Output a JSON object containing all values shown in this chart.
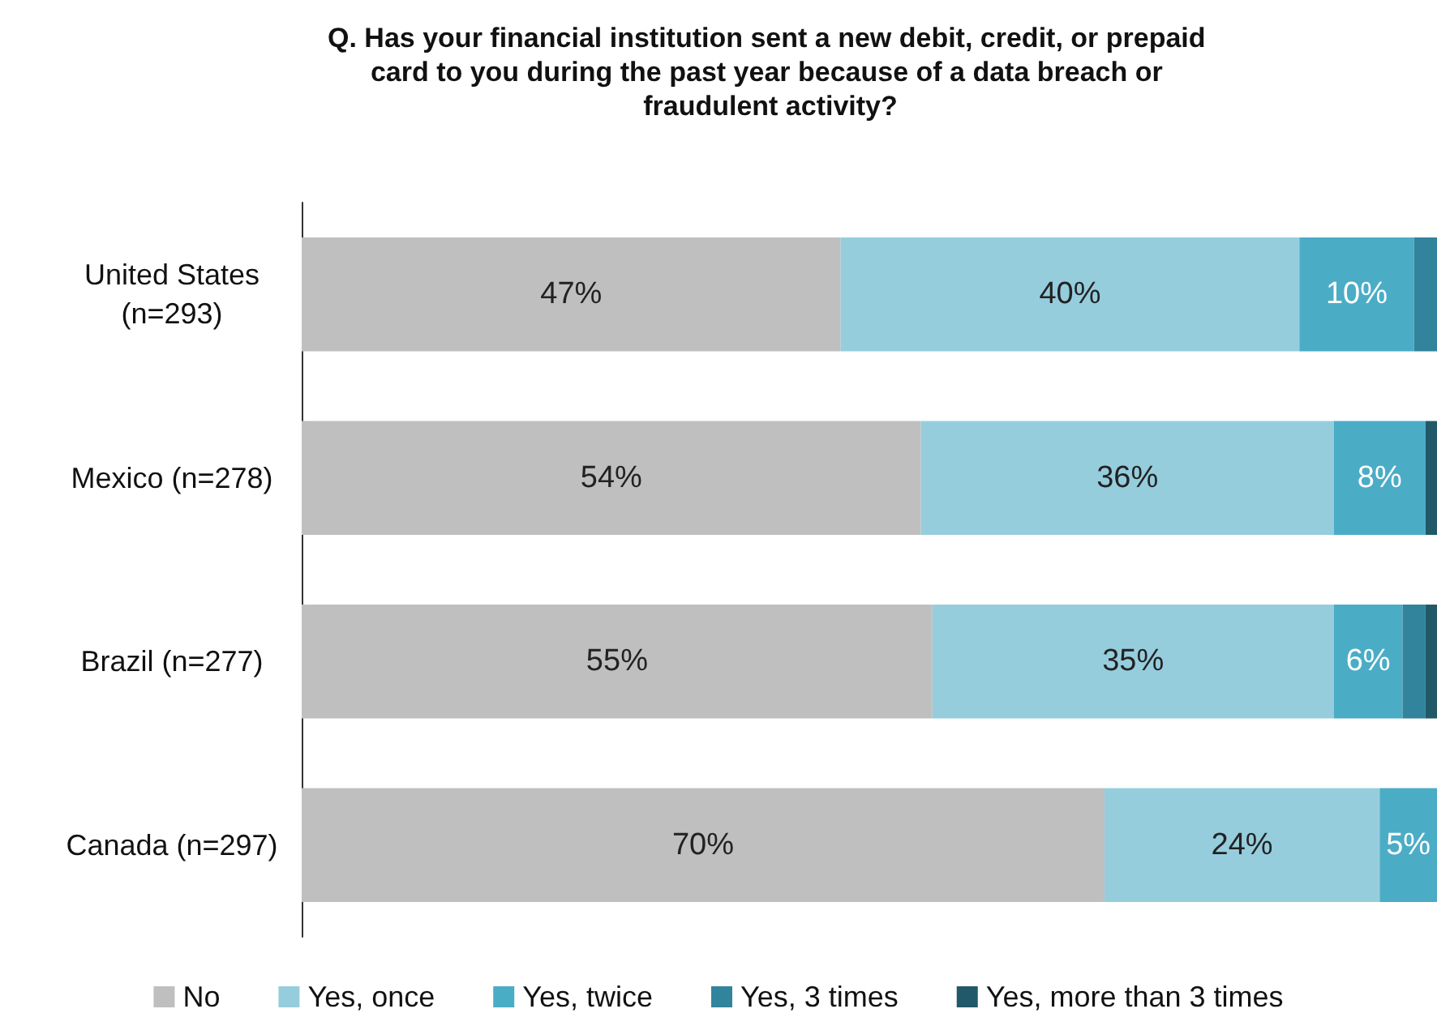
{
  "chart_data": {
    "type": "bar",
    "orientation": "horizontal",
    "stacked": true,
    "title": "Q. Has your financial institution sent a new debit, credit, or prepaid card to you during the past year because of a data breach or fraudulent activity?",
    "categories": [
      "United States\n(n=293)",
      "Mexico (n=278)",
      "Brazil (n=277)",
      "Canada (n=297)"
    ],
    "series": [
      {
        "name": "No",
        "color": "#bfbfbf",
        "values": [
          47,
          54,
          55,
          70
        ],
        "value_labels": [
          "47%",
          "54%",
          "55%",
          "70%"
        ]
      },
      {
        "name": "Yes, once",
        "color": "#96cddd",
        "values": [
          40,
          36,
          35,
          24
        ],
        "value_labels": [
          "40%",
          "36%",
          "35%",
          "24%"
        ]
      },
      {
        "name": "Yes, twice",
        "color": "#4bacc6",
        "values": [
          10,
          8,
          6,
          5
        ],
        "value_labels": [
          "10%",
          "8%",
          "6%",
          "5%"
        ]
      },
      {
        "name": "Yes, 3 times",
        "color": "#31849b",
        "values": [
          2,
          0,
          2,
          0
        ],
        "value_labels": [
          null,
          null,
          null,
          null
        ]
      },
      {
        "name": "Yes, more than 3 times",
        "color": "#215968",
        "values": [
          0,
          1,
          1,
          0
        ],
        "value_labels": [
          null,
          null,
          null,
          null
        ]
      }
    ],
    "legend": "bottom"
  }
}
